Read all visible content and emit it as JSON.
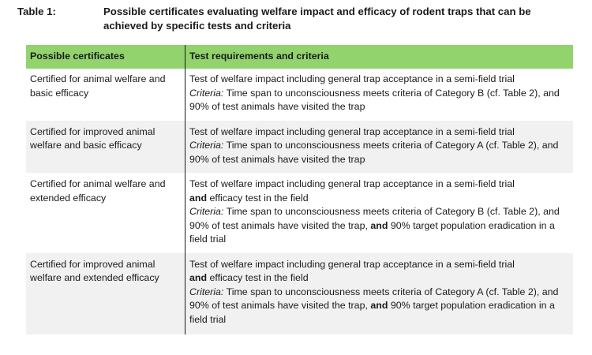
{
  "caption": {
    "number": "Table 1:",
    "title": "Possible certificates evaluating welfare impact and efficacy of rodent traps that can be achieved by specific tests and criteria"
  },
  "table": {
    "headers": [
      "Possible certificates",
      "Test requirements and criteria"
    ],
    "header_color": "#92d36e",
    "stripe_color": "#f1f1f1",
    "rows": [
      {
        "certificate": "Certified for animal welfare and basic efficacy",
        "test_intro": "Test of welfare impact including general trap acceptance in a semi-field trial",
        "efficacy_and": "",
        "efficacy_text": "",
        "criteria_label": "Criteria:",
        "criteria_main": " Time span to unconsciousness meets criteria of Category B (cf. Table 2), and 90% of test animals have visited the trap",
        "criteria_and": "",
        "criteria_extra": ""
      },
      {
        "certificate": "Certified for improved animal welfare and basic efficacy",
        "test_intro": "Test of welfare impact including general trap acceptance in a semi-field trial",
        "efficacy_and": "",
        "efficacy_text": "",
        "criteria_label": "Criteria:",
        "criteria_main": " Time span to unconsciousness meets criteria of Category A (cf. Table 2), and 90% of test animals have visited the trap",
        "criteria_and": "",
        "criteria_extra": ""
      },
      {
        "certificate": "Certified for animal welfare and extended efficacy",
        "test_intro": "Test of welfare impact including general trap acceptance in a semi-field trial",
        "efficacy_and": "and",
        "efficacy_text": " efficacy test in the field",
        "criteria_label": "Criteria:",
        "criteria_main": " Time span to unconsciousness meets criteria of Category B (cf. Table 2), and 90% of test animals have visited the trap, ",
        "criteria_and": "and",
        "criteria_extra": " 90% target population eradication in a field trial"
      },
      {
        "certificate": "Certified for improved animal welfare and extended efficacy",
        "test_intro": "Test of welfare impact including general trap acceptance in a semi-field trial",
        "efficacy_and": "and",
        "efficacy_text": " efficacy test in the field",
        "criteria_label": "Criteria:",
        "criteria_main": " Time span to unconsciousness meets criteria of Category A (cf. Table 2), and 90% of test animals have visited the trap, ",
        "criteria_and": "and",
        "criteria_extra": " 90% target population eradication in a field trial"
      }
    ]
  }
}
